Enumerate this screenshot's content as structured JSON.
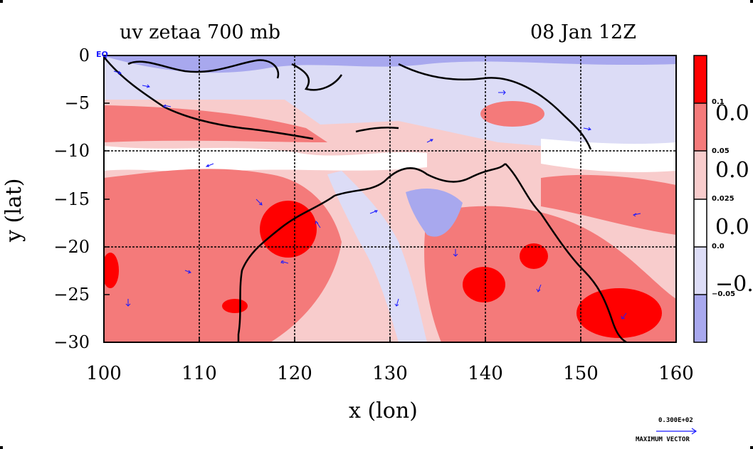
{
  "header": {
    "left_title": "uv zetaa 700 mb",
    "right_title": "08 Jan 12Z"
  },
  "axes": {
    "xlabel": "x (lon)",
    "ylabel": "y (lat)",
    "x_ticks": [
      "100",
      "110",
      "120",
      "130",
      "140",
      "150",
      "160"
    ],
    "y_ticks": [
      "0",
      "−5",
      "−10",
      "−15",
      "−20",
      "−25",
      "−30"
    ],
    "eq_label": "EQ",
    "xlim": [
      100,
      160
    ],
    "ylim": [
      -30,
      0
    ]
  },
  "colorbar": {
    "small_labels": [
      "0.1",
      "0.05",
      "0.025",
      "0.0",
      "−0.05"
    ],
    "big_labels": [
      "0.0",
      "0.0",
      "0.0",
      "−0."
    ],
    "colors": [
      "#ff0000",
      "#f47a7a",
      "#f8cccc",
      "#ffffff",
      "#dcdcf6",
      "#a8a8ee"
    ]
  },
  "vector_key": {
    "value": "0.300E+02",
    "label": "MAXIMUM VECTOR"
  },
  "colors": {
    "vector": "#1a1aff",
    "coast": "#000000",
    "strong_pos": "#ff0000",
    "pos": "#f47a7a",
    "weak_pos": "#f8cccc",
    "neutral": "#ffffff",
    "weak_neg": "#dcdcf6",
    "neg": "#a8a8ee"
  }
}
